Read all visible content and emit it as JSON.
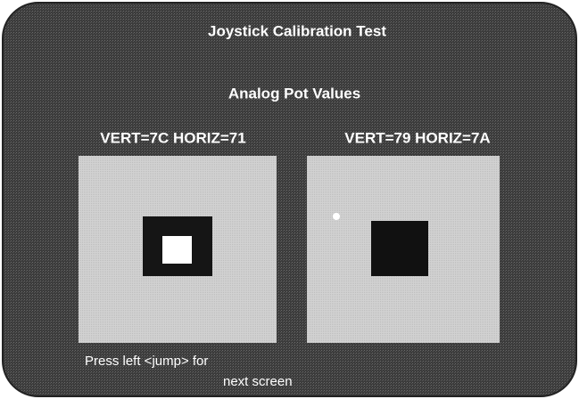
{
  "header": {
    "title": "Joystick Calibration Test"
  },
  "section": {
    "heading": "Analog Pot Values"
  },
  "joysticks": [
    {
      "label": "VERT=7C HORIZ=71"
    },
    {
      "label": "VERT=79 HORIZ=7A"
    }
  ],
  "footer": {
    "lines": [
      "Press left <jump> for",
      "next screen"
    ]
  }
}
